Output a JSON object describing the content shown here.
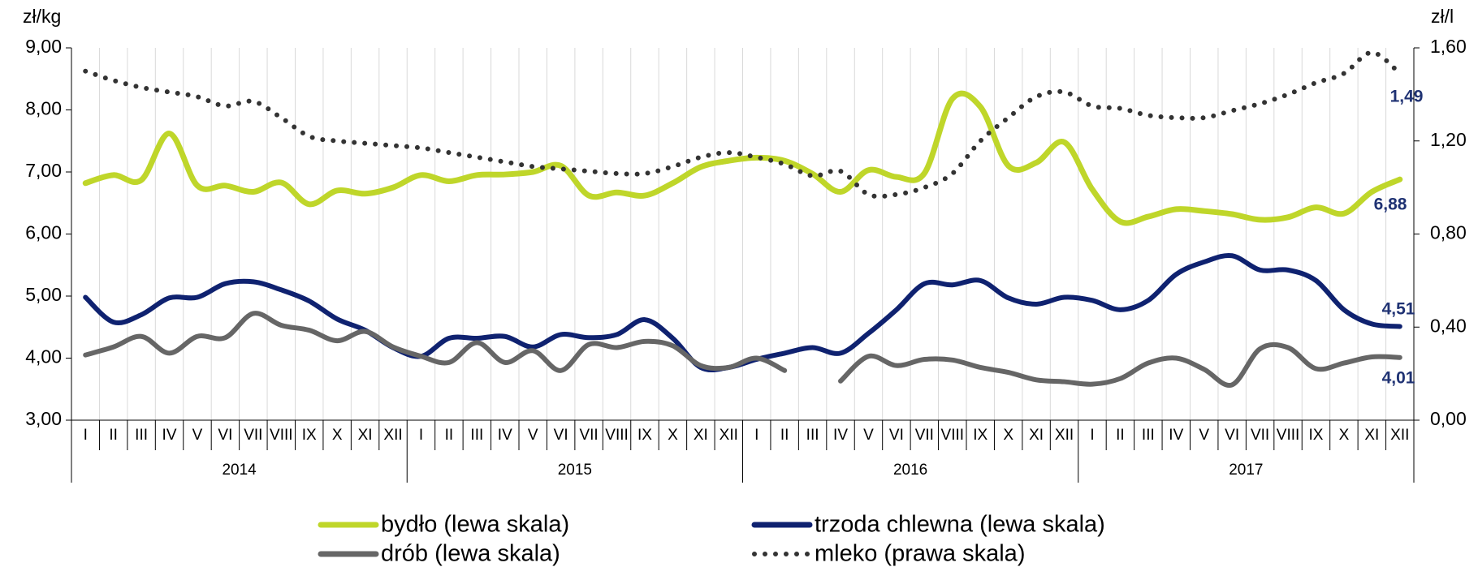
{
  "chart_data": {
    "type": "line",
    "y_label": "zł/kg",
    "y2_label": "zł/l",
    "categories": [
      "I",
      "II",
      "III",
      "IV",
      "V",
      "VI",
      "VII",
      "VIII",
      "IX",
      "X",
      "XI",
      "XII",
      "I",
      "II",
      "III",
      "IV",
      "V",
      "VI",
      "VII",
      "VIII",
      "IX",
      "X",
      "XI",
      "XII",
      "I",
      "II",
      "III",
      "IV",
      "V",
      "VI",
      "VII",
      "VIII",
      "IX",
      "X",
      "XI",
      "XII",
      "I",
      "II",
      "III",
      "IV",
      "V",
      "VI",
      "VII",
      "VIII",
      "IX",
      "X",
      "XI",
      "XII"
    ],
    "years": [
      "2014",
      "2015",
      "2016",
      "2017"
    ],
    "ylim": [
      3,
      9
    ],
    "yticks": [
      {
        "value": 3,
        "label": "3,00"
      },
      {
        "value": 4,
        "label": "4,00"
      },
      {
        "value": 5,
        "label": "5,00"
      },
      {
        "value": 6,
        "label": "6,00"
      },
      {
        "value": 7,
        "label": "7,00"
      },
      {
        "value": 8,
        "label": "8,00"
      },
      {
        "value": 9,
        "label": "9,00"
      }
    ],
    "y2lim": [
      0,
      1.6
    ],
    "y2ticks": [
      {
        "value": 0,
        "label": "0,00"
      },
      {
        "value": 0.4,
        "label": "0,40"
      },
      {
        "value": 0.8,
        "label": "0,80"
      },
      {
        "value": 1.2,
        "label": "1,20"
      },
      {
        "value": 1.6,
        "label": "1,60"
      }
    ],
    "series": [
      {
        "name": "bydło (lewa skala)",
        "color": "#bfd62a",
        "style": "solid",
        "last_label": "6,88",
        "values": [
          6.82,
          6.95,
          6.87,
          7.62,
          6.78,
          6.78,
          6.68,
          6.83,
          6.48,
          6.7,
          6.65,
          6.75,
          6.95,
          6.85,
          6.95,
          6.96,
          7.0,
          7.1,
          6.62,
          6.67,
          6.62,
          6.82,
          7.08,
          7.18,
          7.23,
          7.18,
          6.97,
          6.68,
          7.03,
          6.92,
          6.98,
          8.18,
          8.05,
          7.1,
          7.15,
          7.48,
          6.72,
          6.2,
          6.28,
          6.4,
          6.37,
          6.32,
          6.23,
          6.27,
          6.43,
          6.33,
          6.68,
          6.88
        ]
      },
      {
        "name": "trzoda chlewna (lewa skala)",
        "color": "#0f2270",
        "style": "solid",
        "last_label": "4,51",
        "values": [
          4.98,
          4.58,
          4.7,
          4.97,
          4.98,
          5.2,
          5.23,
          5.1,
          4.92,
          4.63,
          4.45,
          4.17,
          4.03,
          4.32,
          4.32,
          4.35,
          4.18,
          4.38,
          4.33,
          4.38,
          4.62,
          4.32,
          3.85,
          3.85,
          3.98,
          4.08,
          4.17,
          4.08,
          4.4,
          4.78,
          5.2,
          5.18,
          5.25,
          4.97,
          4.87,
          4.98,
          4.93,
          4.78,
          4.93,
          5.35,
          5.55,
          5.65,
          5.42,
          5.42,
          5.25,
          4.78,
          4.55,
          4.51
        ]
      },
      {
        "name": "drób (lewa skala)",
        "color": "#666666",
        "style": "solid",
        "last_label": "4,01",
        "values": [
          4.05,
          4.18,
          4.35,
          4.08,
          4.35,
          4.33,
          4.72,
          4.53,
          4.45,
          4.28,
          4.43,
          4.18,
          4.03,
          3.93,
          4.25,
          3.93,
          4.12,
          3.8,
          4.22,
          4.17,
          4.27,
          4.2,
          3.88,
          3.85,
          4.0,
          3.8,
          null,
          3.63,
          4.03,
          3.88,
          3.98,
          3.97,
          3.85,
          3.77,
          3.65,
          3.62,
          3.58,
          3.67,
          3.92,
          4.0,
          3.82,
          3.57,
          4.15,
          4.17,
          3.83,
          3.92,
          4.02,
          4.01
        ]
      },
      {
        "name": "mleko (prawa skala)",
        "color": "#333333",
        "style": "dotted",
        "axis": "y2",
        "last_label": "1,49",
        "values": [
          1.5,
          1.46,
          1.43,
          1.41,
          1.39,
          1.35,
          1.37,
          1.3,
          1.22,
          1.2,
          1.19,
          1.18,
          1.17,
          1.15,
          1.13,
          1.11,
          1.09,
          1.08,
          1.07,
          1.06,
          1.06,
          1.09,
          1.13,
          1.15,
          1.13,
          1.1,
          1.05,
          1.07,
          0.97,
          0.97,
          1.0,
          1.06,
          1.2,
          1.3,
          1.39,
          1.41,
          1.35,
          1.34,
          1.31,
          1.3,
          1.3,
          1.33,
          1.36,
          1.4,
          1.45,
          1.49,
          1.58,
          1.49
        ]
      }
    ],
    "grid": true
  }
}
